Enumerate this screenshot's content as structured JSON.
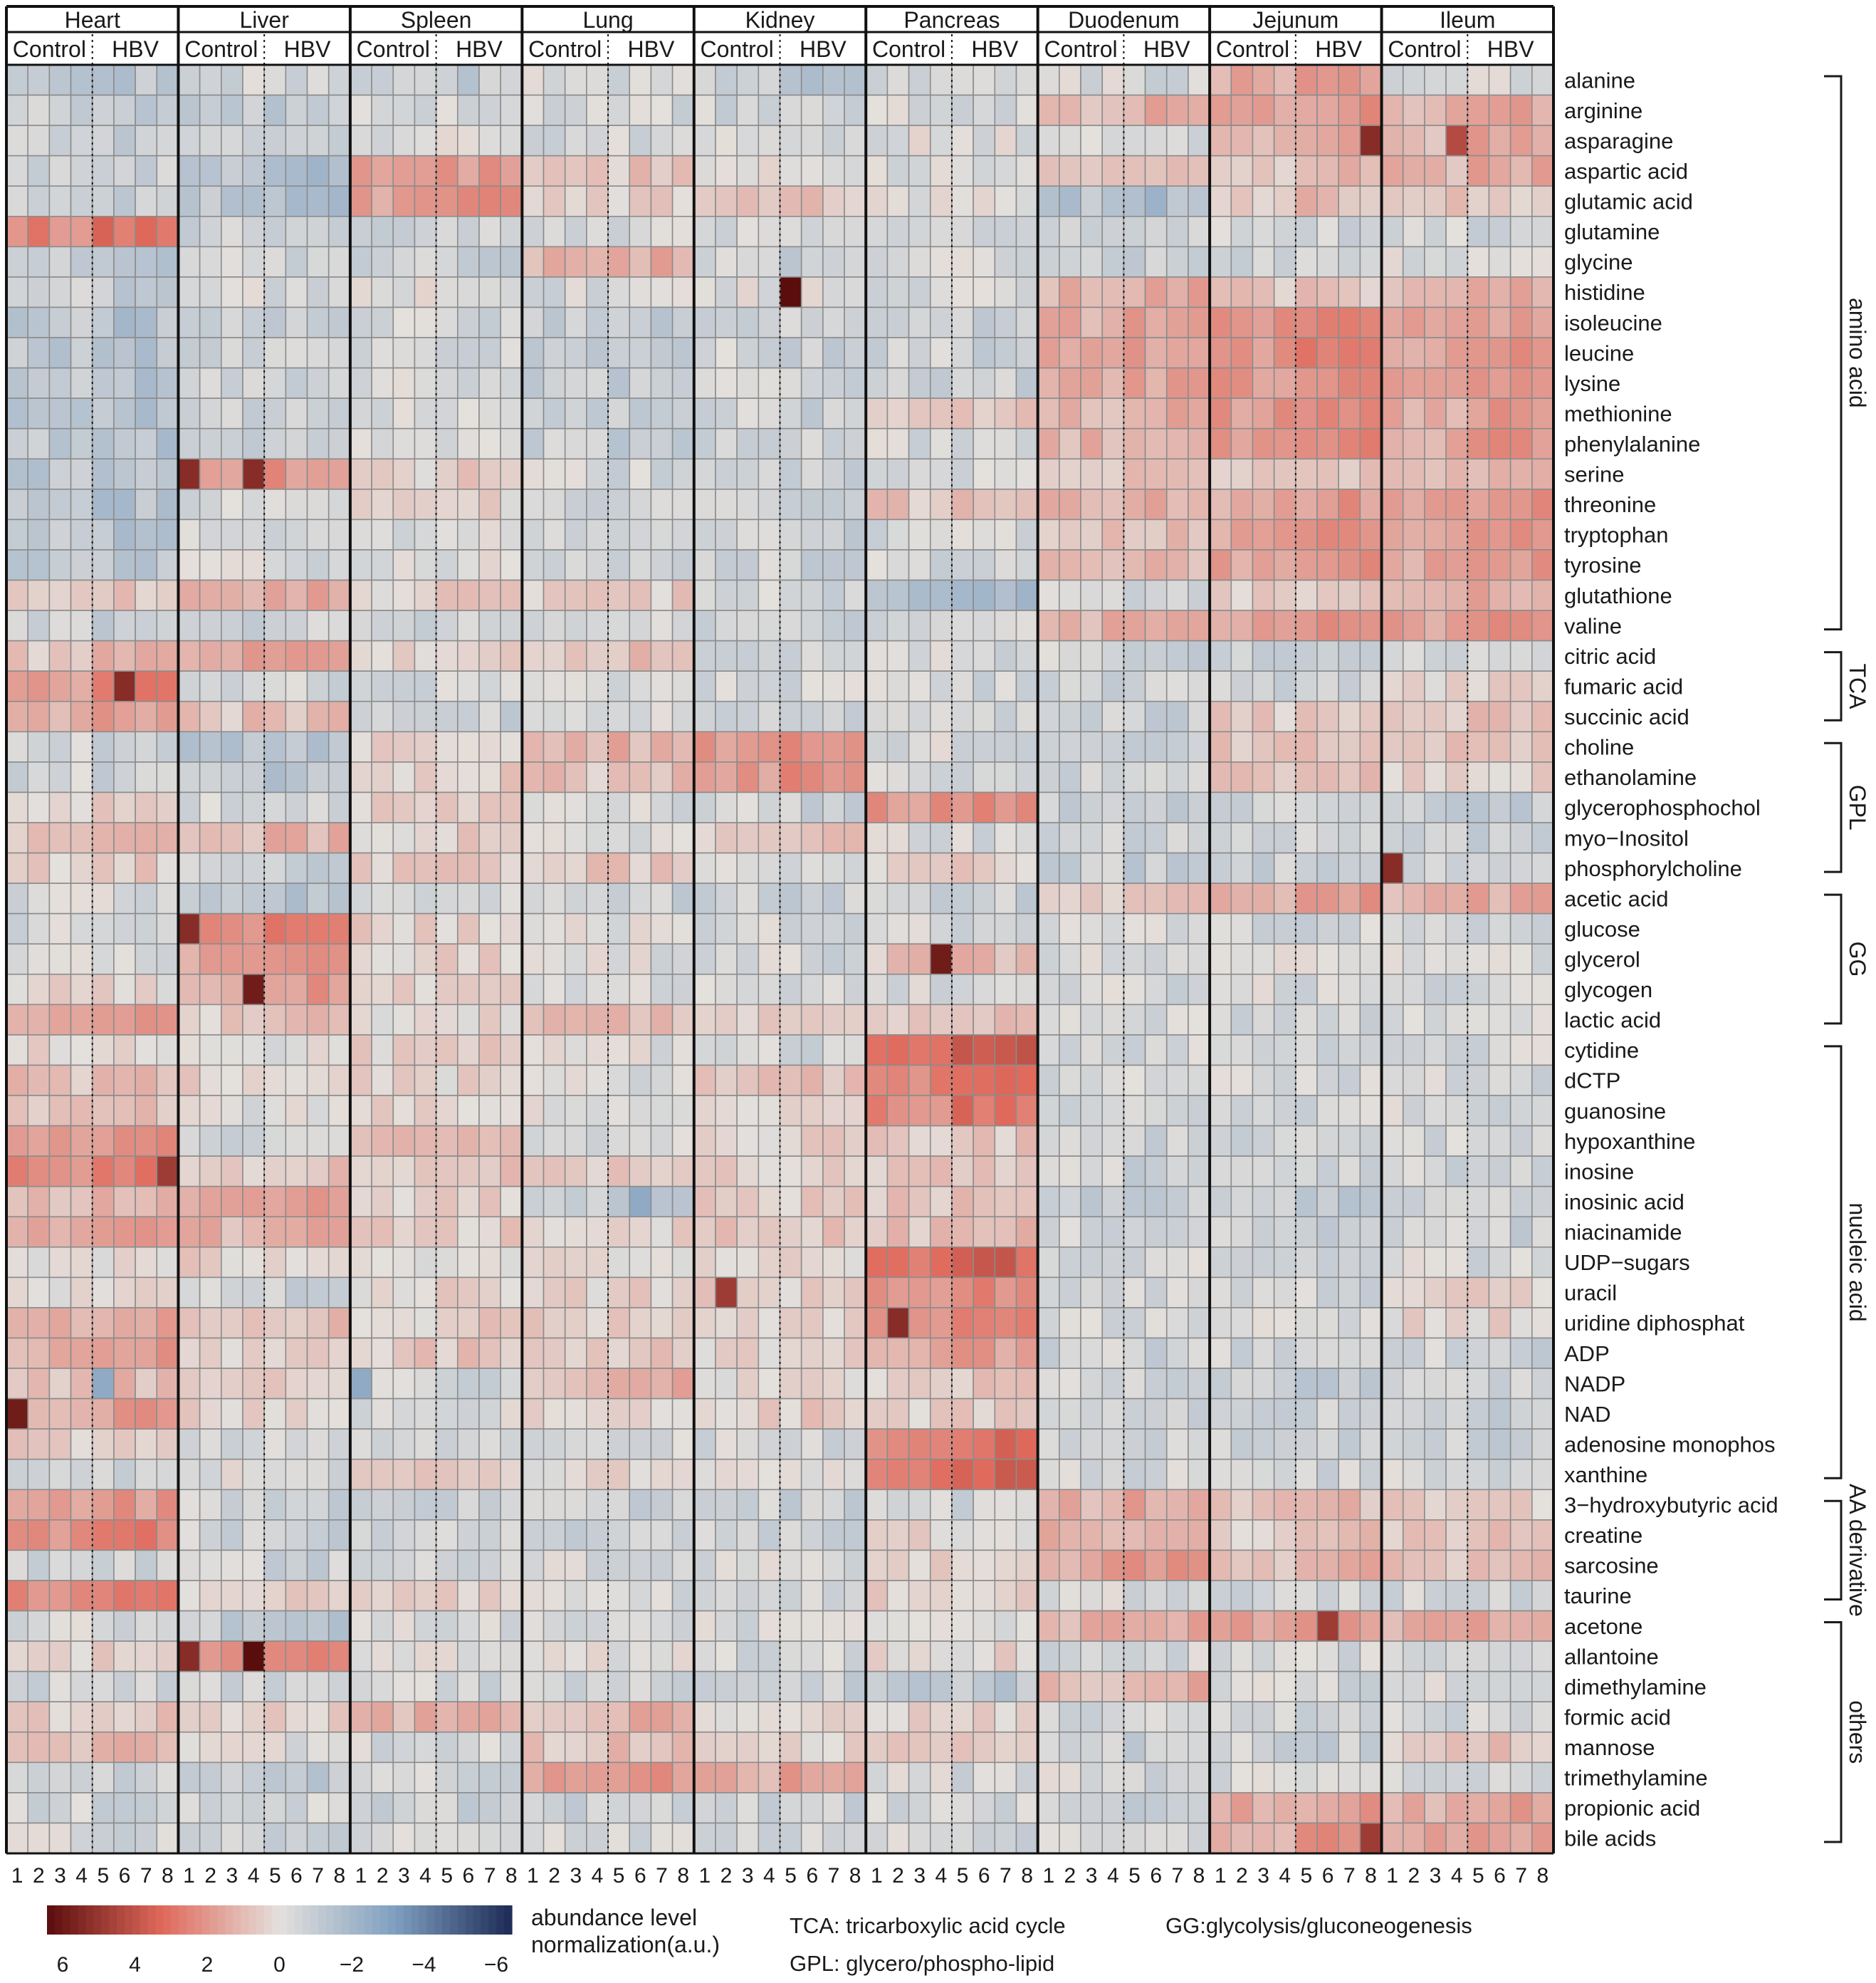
{
  "chart_data": {
    "type": "heatmap",
    "title": "",
    "tissues": [
      {
        "name": "Heart",
        "groups": [
          "Control",
          "HBV"
        ]
      },
      {
        "name": "Liver",
        "groups": [
          "Control",
          "HBV"
        ]
      },
      {
        "name": "Spleen",
        "groups": [
          "Control",
          "HBV"
        ]
      },
      {
        "name": "Lung",
        "groups": [
          "Control",
          "HBV"
        ]
      },
      {
        "name": "Kidney",
        "groups": [
          "Control",
          "HBV"
        ]
      },
      {
        "name": "Pancreas",
        "groups": [
          "Control",
          "HBV"
        ]
      },
      {
        "name": "Duodenum",
        "groups": [
          "Control",
          "HBV"
        ]
      },
      {
        "name": "Jejunum",
        "groups": [
          "Control",
          "HBV"
        ]
      },
      {
        "name": "Ileum",
        "groups": [
          "Control",
          "HBV"
        ]
      }
    ],
    "sample_labels": [
      "1",
      "2",
      "3",
      "4",
      "5",
      "6",
      "7",
      "8"
    ],
    "metabolites": [
      "alanine",
      "arginine",
      "asparagine",
      "aspartic acid",
      "glutamic acid",
      "glutamine",
      "glycine",
      "histidine",
      "isoleucine",
      "leucine",
      "lysine",
      "methionine",
      "phenylalanine",
      "serine",
      "threonine",
      "tryptophan",
      "tyrosine",
      "glutathione",
      "valine",
      "citric acid",
      "fumaric acid",
      "succinic acid",
      "choline",
      "ethanolamine",
      "glycerophosphochol",
      "myo−Inositol",
      "phosphorylcholine",
      "acetic acid",
      "glucose",
      "glycerol",
      "glycogen",
      "lactic acid",
      "cytidine",
      "dCTP",
      "guanosine",
      "hypoxanthine",
      "inosine",
      "inosinic acid",
      "niacinamide",
      "UDP−sugars",
      "uracil",
      "uridine diphosphat",
      "ADP",
      "NADP",
      "NAD",
      "adenosine monophos",
      "xanthine",
      "3−hydroxybutyric acid",
      "creatine",
      "sarcosine",
      "taurine",
      "acetone",
      "allantoine",
      "dimethylamine",
      "formic acid",
      "mannose",
      "trimethylamine",
      "propionic acid",
      "bile acids"
    ],
    "categories": [
      {
        "label": "amino acid",
        "first": "alanine",
        "last": "valine"
      },
      {
        "label": "TCA",
        "first": "citric acid",
        "last": "succinic acid"
      },
      {
        "label": "GPL",
        "first": "choline",
        "last": "phosphorylcholine"
      },
      {
        "label": "GG",
        "first": "acetic acid",
        "last": "lactic acid"
      },
      {
        "label": "nucleic acid",
        "first": "cytidine",
        "last": "xanthine"
      },
      {
        "label": "AA derivative",
        "first": "3−hydroxybutyric acid",
        "last": "taurine"
      },
      {
        "label": "others",
        "first": "acetone",
        "last": "bile acids"
      }
    ],
    "color_scale": {
      "label": "abundance level normalization(a.u.)",
      "range": [
        6,
        -6
      ],
      "ticks": [
        "6",
        "4",
        "2",
        "0",
        "−2",
        "−4",
        "−6"
      ],
      "colors": {
        "high": "#5a0d0d",
        "mid_high": "#e06a5c",
        "zero": "#e4e0dc",
        "mid_low": "#7f9fc0",
        "low": "#1d2a55"
      }
    },
    "notes": {
      "tca": "TCA: tricarboxylic acid cycle",
      "gg": "GG:glycolysis/gluconeogenesis",
      "gpl": "GPL: glycero/phospho-lipid"
    },
    "tissue_trends": {
      "Heart": [
        -1.0,
        -0.8,
        -0.8,
        -0.6,
        -0.6,
        2.5,
        -1.0,
        -0.8,
        -1.2,
        -1.2,
        -1.2,
        -1.2,
        -1.2,
        -1.2,
        -1.2,
        -1.2,
        -1.0,
        0.5,
        -0.8,
        0.8,
        2.0,
        1.4,
        -0.6,
        -0.6,
        0.4,
        1.0,
        0.4,
        -0.3,
        -0.4,
        -0.2,
        0.2,
        1.6,
        0.2,
        0.8,
        0.6,
        1.8,
        2.2,
        1.0,
        1.6,
        0.2,
        0.2,
        1.2,
        1.4,
        0.8,
        1.4,
        0.6,
        -0.4,
        1.6,
        2.0,
        -0.6,
        2.2,
        -0.4,
        0.3,
        -0.6,
        0.6,
        0.8,
        -0.6,
        -0.6,
        -0.4
      ],
      "Liver": [
        -0.5,
        -0.8,
        -0.4,
        -1.4,
        -1.4,
        -0.6,
        -0.6,
        -0.4,
        -0.6,
        -0.6,
        -0.6,
        -0.6,
        -0.6,
        1.6,
        -0.4,
        -0.4,
        -0.4,
        1.4,
        -0.6,
        1.8,
        -0.4,
        0.8,
        -1.2,
        -1.2,
        -0.6,
        1.0,
        -0.6,
        -1.0,
        2.2,
        1.8,
        1.6,
        0.6,
        -0.2,
        0.4,
        -0.2,
        -0.4,
        0.6,
        1.4,
        1.2,
        0.4,
        -0.6,
        0.8,
        0.4,
        0.4,
        0.4,
        -0.4,
        -0.2,
        -0.6,
        -0.6,
        -0.6,
        0.4,
        -1.0,
        2.0,
        -0.6,
        0.4,
        -0.2,
        -1.0,
        -0.4,
        -0.6
      ],
      "Spleen": [
        -0.8,
        -0.4,
        -0.2,
        1.6,
        1.6,
        -0.6,
        -0.6,
        -0.2,
        -0.4,
        -0.4,
        -0.4,
        -0.4,
        -0.4,
        0.4,
        0.2,
        -0.2,
        -0.2,
        0.4,
        -0.6,
        0.4,
        -0.4,
        -0.6,
        0.4,
        0.4,
        0.4,
        0.4,
        0.4,
        -0.4,
        0.4,
        0.4,
        0.4,
        0.2,
        0.4,
        0.2,
        0.4,
        1.2,
        0.6,
        0.4,
        0.4,
        -0.2,
        0.2,
        0.4,
        0.6,
        -0.4,
        -0.2,
        -0.2,
        0.4,
        -0.6,
        -0.6,
        -0.4,
        0.4,
        -0.4,
        -0.2,
        -0.6,
        1.2,
        -0.4,
        -0.4,
        -0.6,
        -0.4
      ],
      "Lung": [
        -0.4,
        -0.4,
        -0.4,
        0.6,
        0.4,
        -0.4,
        1.2,
        -0.4,
        -0.8,
        -0.8,
        -0.8,
        -0.8,
        -0.8,
        -0.4,
        -0.4,
        -0.4,
        -0.4,
        0.4,
        -0.4,
        0.8,
        -0.4,
        -0.4,
        1.0,
        0.8,
        -0.4,
        -0.2,
        0.6,
        -0.6,
        -0.2,
        -0.2,
        -0.2,
        0.8,
        -0.2,
        -0.2,
        -0.2,
        -0.2,
        0.4,
        -0.8,
        0.2,
        0.2,
        0.4,
        0.4,
        0.6,
        1.0,
        0.2,
        -0.4,
        0.2,
        -0.6,
        -0.6,
        -0.4,
        -0.4,
        -0.4,
        -0.2,
        -0.6,
        1.0,
        0.8,
        1.6,
        -0.6,
        -0.4
      ],
      "Kidney": [
        -1.0,
        -0.6,
        -0.4,
        -0.2,
        0.6,
        -0.6,
        -0.6,
        -0.2,
        -0.6,
        -0.6,
        -0.6,
        -0.6,
        -0.6,
        -0.6,
        -0.8,
        -0.6,
        -0.6,
        -0.6,
        -0.6,
        -0.4,
        -0.4,
        -0.4,
        2.0,
        2.0,
        -0.6,
        0.8,
        -0.4,
        -0.6,
        -0.4,
        -0.4,
        -0.4,
        0.4,
        -0.4,
        0.6,
        0.4,
        0.4,
        0.4,
        0.4,
        0.6,
        0.2,
        0.4,
        0.4,
        0.2,
        0.2,
        0.4,
        -0.4,
        0.2,
        -0.6,
        -0.6,
        -0.4,
        -0.4,
        -0.4,
        -0.4,
        -0.6,
        0.2,
        0.2,
        1.4,
        -0.6,
        -0.4
      ],
      "Pancreas": [
        -0.6,
        -0.4,
        -0.2,
        -0.4,
        -0.2,
        -0.4,
        -0.2,
        -0.4,
        -0.6,
        -0.6,
        -0.6,
        0.4,
        -0.4,
        -0.2,
        0.8,
        -0.4,
        -0.6,
        -1.4,
        -0.4,
        -0.4,
        -0.4,
        -0.4,
        -0.4,
        -0.4,
        2.0,
        -0.4,
        0.4,
        -0.6,
        -0.4,
        0.8,
        -0.4,
        0.6,
        3.0,
        2.6,
        2.4,
        0.6,
        0.6,
        0.8,
        0.8,
        2.8,
        2.0,
        2.2,
        1.4,
        0.6,
        0.4,
        2.4,
        2.6,
        -0.4,
        0.2,
        0.2,
        0.4,
        -0.4,
        0.2,
        -1.0,
        0.4,
        0.6,
        -0.4,
        -0.4,
        -0.4
      ],
      "Duodenum": [
        -0.4,
        1.2,
        -0.6,
        0.4,
        -1.4,
        -0.4,
        -0.6,
        1.2,
        1.4,
        1.4,
        1.4,
        1.2,
        1.2,
        0.6,
        1.2,
        0.8,
        0.8,
        -0.6,
        1.2,
        -0.6,
        -0.6,
        -0.6,
        -0.6,
        -0.6,
        -0.8,
        -0.6,
        -0.8,
        0.6,
        -0.4,
        -0.4,
        -0.4,
        -0.4,
        -0.4,
        -0.4,
        -0.4,
        -0.6,
        -0.6,
        -0.8,
        -0.6,
        -0.4,
        -0.4,
        -0.4,
        -0.6,
        -0.6,
        -0.6,
        -0.6,
        -0.4,
        1.2,
        1.2,
        1.6,
        -0.4,
        1.2,
        -0.4,
        1.0,
        -0.4,
        -0.6,
        -0.4,
        -0.6,
        -0.4
      ],
      "Jejunum": [
        1.4,
        1.6,
        1.4,
        0.8,
        0.8,
        -0.4,
        -0.6,
        0.6,
        2.0,
        2.0,
        2.0,
        2.0,
        2.0,
        0.6,
        1.6,
        1.8,
        1.6,
        0.4,
        1.8,
        -0.6,
        -0.6,
        0.6,
        0.6,
        0.6,
        -0.8,
        -0.6,
        -0.8,
        1.4,
        -0.4,
        -0.2,
        -0.4,
        -0.4,
        -0.4,
        -0.4,
        -0.4,
        -0.6,
        -0.6,
        -0.8,
        -0.6,
        -0.4,
        -0.4,
        -0.4,
        -0.6,
        -0.8,
        -0.6,
        -0.6,
        -0.4,
        0.8,
        0.6,
        1.0,
        -0.4,
        1.6,
        -0.4,
        -0.4,
        -0.4,
        -0.6,
        -0.4,
        1.4,
        1.6
      ],
      "Ileum": [
        -0.2,
        1.2,
        1.2,
        1.2,
        0.6,
        -0.6,
        -0.2,
        1.0,
        1.6,
        1.6,
        1.6,
        1.6,
        1.6,
        0.8,
        1.6,
        1.6,
        1.6,
        1.2,
        1.8,
        -0.6,
        0.2,
        0.8,
        0.6,
        0.2,
        -0.8,
        -0.6,
        -0.6,
        1.2,
        -0.4,
        -0.2,
        -0.4,
        -0.4,
        -0.4,
        -0.4,
        -0.4,
        -0.6,
        -0.6,
        -0.6,
        -0.6,
        -0.4,
        0.2,
        0.2,
        -0.6,
        -0.6,
        -0.6,
        -0.6,
        -0.4,
        0.4,
        0.6,
        0.8,
        -0.4,
        1.2,
        -0.4,
        -0.4,
        -0.4,
        0.6,
        -0.4,
        1.4,
        1.4
      ]
    },
    "highlight_cells": [
      {
        "tissue": "Kidney",
        "sample": 5,
        "metabolite": "histidine",
        "value": 6.0
      },
      {
        "tissue": "Jejunum",
        "sample": 8,
        "metabolite": "asparagine",
        "value": 5.0
      },
      {
        "tissue": "Ileum",
        "sample": 4,
        "metabolite": "asparagine",
        "value": 4.0
      },
      {
        "tissue": "Liver",
        "sample": 1,
        "metabolite": "serine",
        "value": 5.0
      },
      {
        "tissue": "Liver",
        "sample": 4,
        "metabolite": "serine",
        "value": 5.0
      },
      {
        "tissue": "Heart",
        "sample": 6,
        "metabolite": "fumaric acid",
        "value": 5.0
      },
      {
        "tissue": "Pancreas",
        "sample": 4,
        "metabolite": "glycerol",
        "value": 5.5
      },
      {
        "tissue": "Liver",
        "sample": 4,
        "metabolite": "glycogen",
        "value": 5.5
      },
      {
        "tissue": "Liver",
        "sample": 1,
        "metabolite": "glucose",
        "value": 5.0
      },
      {
        "tissue": "Liver",
        "sample": 4,
        "metabolite": "allantoine",
        "value": 6.0
      },
      {
        "tissue": "Liver",
        "sample": 1,
        "metabolite": "allantoine",
        "value": 5.0
      },
      {
        "tissue": "Heart",
        "sample": 1,
        "metabolite": "NAD",
        "value": 5.5
      },
      {
        "tissue": "Heart",
        "sample": 8,
        "metabolite": "inosine",
        "value": 4.5
      },
      {
        "tissue": "Pancreas",
        "sample": 2,
        "metabolite": "uridine diphosphat",
        "value": 5.0
      },
      {
        "tissue": "Kidney",
        "sample": 2,
        "metabolite": "uracil",
        "value": 4.5
      },
      {
        "tissue": "Ileum",
        "sample": 1,
        "metabolite": "phosphorylcholine",
        "value": 5.0
      },
      {
        "tissue": "Jejunum",
        "sample": 6,
        "metabolite": "acetone",
        "value": 4.5
      },
      {
        "tissue": "Jejunum",
        "sample": 8,
        "metabolite": "bile acids",
        "value": 4.5
      },
      {
        "tissue": "Spleen",
        "sample": 1,
        "metabolite": "NADP",
        "value": -2.5
      },
      {
        "tissue": "Heart",
        "sample": 5,
        "metabolite": "NADP",
        "value": -2.5
      },
      {
        "tissue": "Lung",
        "sample": 6,
        "metabolite": "inosinic acid",
        "value": -2.5
      }
    ]
  }
}
